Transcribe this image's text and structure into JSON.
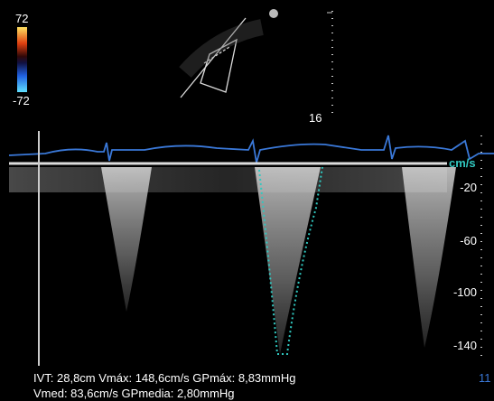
{
  "color_bar": {
    "max": "72",
    "min": "-72"
  },
  "depth": "16",
  "velocity_scale": {
    "unit": "cm/s",
    "ticks": [
      "-20",
      "-60",
      "-100",
      "-140"
    ]
  },
  "measurements": {
    "line1": "IVT: 28,8cm Vmáx: 148,6cm/s  GPmáx: 8,83mmHg",
    "line2": "Vmed: 83,6cm/s  GPmedia: 2,80mmHg",
    "frame": "11"
  }
}
